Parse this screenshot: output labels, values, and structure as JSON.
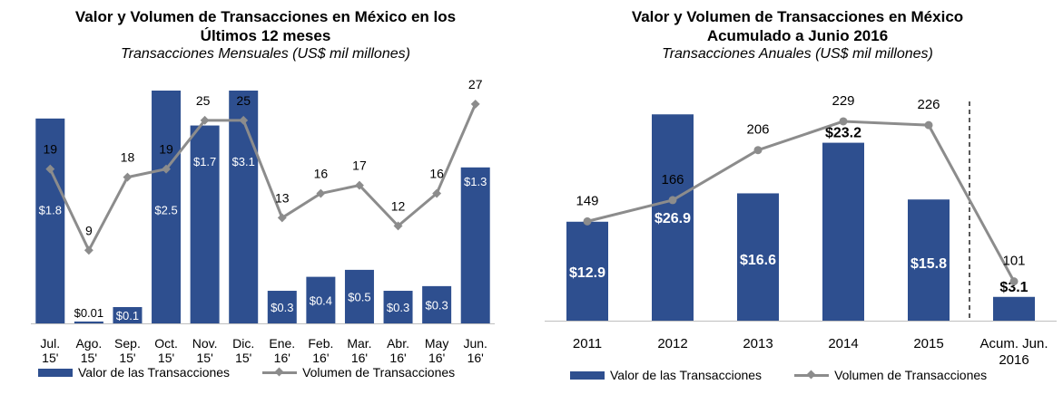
{
  "chart_data": [
    {
      "type": "bar",
      "title": "Valor y Volumen de Transacciones en México en los Últimos 12 meses",
      "title_lines": [
        "Valor y Volumen de Transacciones en México en los",
        "Últimos 12 meses"
      ],
      "subtitle": "Transacciones Mensuales (US$ mil millones)",
      "categories": [
        [
          "Jul.",
          "15'"
        ],
        [
          "Ago.",
          "15'"
        ],
        [
          "Sep.",
          "15'"
        ],
        [
          "Oct.",
          "15'"
        ],
        [
          "Nov.",
          "15'"
        ],
        [
          "Dic.",
          "15'"
        ],
        [
          "Ene.",
          "16'"
        ],
        [
          "Feb.",
          "16'"
        ],
        [
          "Mar.",
          "16'"
        ],
        [
          "Abr.",
          "16'"
        ],
        [
          "May",
          "16'"
        ],
        [
          "Jun.",
          "16'"
        ]
      ],
      "series": [
        {
          "name": "Valor de las Transacciones",
          "kind": "bar",
          "color": "#2e4f8f",
          "values": [
            1.8,
            0.01,
            0.1,
            2.5,
            1.7,
            3.1,
            0.3,
            0.4,
            0.5,
            0.3,
            0.3,
            1.3
          ],
          "labels": [
            "$1.8",
            "$0.01",
            "$0.1",
            "$2.5",
            "$1.7",
            "$3.1",
            "$0.3",
            "$0.4",
            "$0.5",
            "$0.3",
            "$0.3",
            "$1.3"
          ],
          "bar_heights_relative": [
            0.88,
            0.008,
            0.07,
            1.0,
            0.85,
            1.0,
            0.14,
            0.2,
            0.23,
            0.14,
            0.16,
            0.67
          ]
        },
        {
          "name": "Volumen de Transacciones",
          "kind": "line",
          "color": "#8c8c8c",
          "values": [
            19,
            9,
            18,
            19,
            25,
            25,
            13,
            16,
            17,
            12,
            16,
            27
          ],
          "labels": [
            "19",
            "9",
            "18",
            "19",
            "25",
            "25",
            "13",
            "16",
            "17",
            "12",
            "16",
            "27"
          ]
        }
      ],
      "legend": [
        "Valor de las Transacciones",
        "Volumen de Transacciones"
      ],
      "legend_position": "bottom"
    },
    {
      "type": "bar",
      "title": "Valor y Volumen de Transacciones en México Acumulado a Junio 2016",
      "title_lines": [
        "Valor y Volumen de Transacciones en México",
        "Acumulado a Junio 2016"
      ],
      "subtitle": "Transacciones Anuales (US$ mil millones)",
      "categories": [
        [
          "2011"
        ],
        [
          "2012"
        ],
        [
          "2013"
        ],
        [
          "2014"
        ],
        [
          "2015"
        ],
        [
          "Acum. Jun.",
          "2016"
        ]
      ],
      "series": [
        {
          "name": "Valor de las Transacciones",
          "kind": "bar",
          "color": "#2e4f8f",
          "values": [
            12.9,
            26.9,
            16.6,
            23.2,
            15.8,
            3.1
          ],
          "labels": [
            "$12.9",
            "$26.9",
            "$16.6",
            "$23.2",
            "$15.8",
            "$3.1"
          ]
        },
        {
          "name": "Volumen de Transacciones",
          "kind": "line",
          "color": "#8c8c8c",
          "values": [
            149,
            166,
            206,
            229,
            226,
            101
          ],
          "labels": [
            "149",
            "166",
            "206",
            "229",
            "226",
            "101"
          ]
        }
      ],
      "legend": [
        "Valor de las Transacciones",
        "Volumen de Transacciones"
      ],
      "legend_position": "bottom",
      "separator_before_last": true
    }
  ]
}
